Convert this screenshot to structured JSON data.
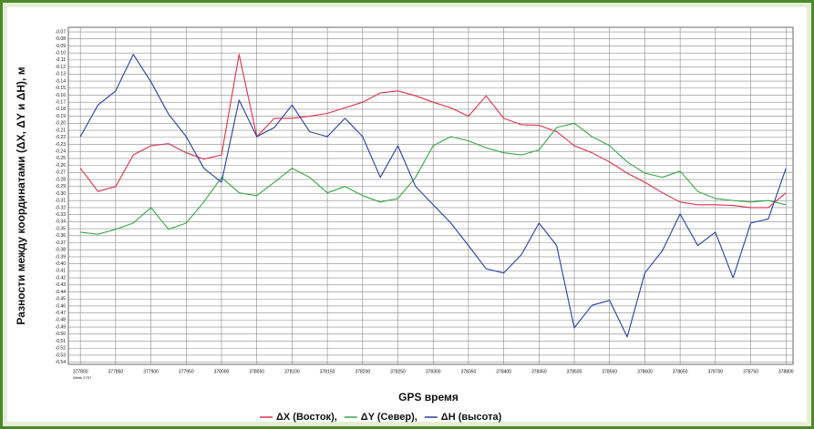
{
  "chart_data": {
    "type": "line",
    "y_label": "Разности между координатами (ΔX, ΔY и ΔH), м",
    "x_label": "GPS время",
    "annotation": "Week 2797",
    "x": [
      377800,
      377825,
      377850,
      377875,
      377900,
      377925,
      377950,
      377975,
      378000,
      378025,
      378050,
      378075,
      378100,
      378125,
      378150,
      378175,
      378200,
      378225,
      378250,
      378275,
      378300,
      378325,
      378350,
      378375,
      378400,
      378425,
      378450,
      378475,
      378500,
      378525,
      378550,
      378575,
      378600,
      378625,
      378650,
      378675,
      378700,
      378725,
      378750,
      378775,
      378800
    ],
    "series": [
      {
        "name": "ΔX (Восток),",
        "color": "#e0304a",
        "values": [
          -0.264,
          -0.297,
          -0.29,
          -0.245,
          -0.232,
          -0.229,
          -0.242,
          -0.251,
          -0.245,
          -0.102,
          -0.219,
          -0.193,
          -0.193,
          -0.19,
          -0.186,
          -0.178,
          -0.17,
          -0.157,
          -0.154,
          -0.161,
          -0.17,
          -0.178,
          -0.19,
          -0.161,
          -0.193,
          -0.202,
          -0.203,
          -0.212,
          -0.232,
          -0.242,
          -0.255,
          -0.271,
          -0.284,
          -0.299,
          -0.312,
          -0.316,
          -0.316,
          -0.317,
          -0.32,
          -0.32,
          -0.299
        ]
      },
      {
        "name": "ΔY (Север),",
        "color": "#3aa84a",
        "values": [
          -0.355,
          -0.358,
          -0.351,
          -0.342,
          -0.32,
          -0.351,
          -0.342,
          -0.312,
          -0.277,
          -0.299,
          -0.303,
          -0.284,
          -0.264,
          -0.277,
          -0.299,
          -0.29,
          -0.303,
          -0.312,
          -0.307,
          -0.277,
          -0.232,
          -0.219,
          -0.225,
          -0.235,
          -0.242,
          -0.245,
          -0.238,
          -0.206,
          -0.2,
          -0.219,
          -0.232,
          -0.255,
          -0.271,
          -0.277,
          -0.268,
          -0.297,
          -0.307,
          -0.31,
          -0.312,
          -0.31,
          -0.316
        ]
      },
      {
        "name": "ΔH (высота)",
        "color": "#2a40a0",
        "values": [
          -0.219,
          -0.174,
          -0.154,
          -0.102,
          -0.141,
          -0.187,
          -0.219,
          -0.264,
          -0.284,
          -0.167,
          -0.219,
          -0.206,
          -0.174,
          -0.212,
          -0.219,
          -0.193,
          -0.219,
          -0.277,
          -0.232,
          -0.29,
          -0.316,
          -0.342,
          -0.374,
          -0.407,
          -0.413,
          -0.387,
          -0.342,
          -0.374,
          -0.491,
          -0.459,
          -0.452,
          -0.504,
          -0.413,
          -0.381,
          -0.329,
          -0.374,
          -0.355,
          -0.42,
          -0.342,
          -0.336,
          -0.264
        ]
      }
    ],
    "xlim": [
      377783,
      378810
    ],
    "xticks": [
      377800,
      377850,
      377900,
      377950,
      378000,
      378050,
      378100,
      378150,
      378200,
      378250,
      378300,
      378350,
      378400,
      378450,
      378500,
      378550,
      378600,
      378650,
      378700,
      378750,
      378800
    ],
    "ylim": [
      -0.543,
      -0.0635
    ],
    "yticks": [
      -0.07,
      -0.08,
      -0.09,
      {
        "value": -0.1,
        "label": "-0.10"
      },
      -0.11,
      -0.12,
      -0.13,
      -0.14,
      -0.15,
      -0.16,
      -0.17,
      -0.18,
      -0.19,
      {
        "value": -0.2,
        "label": "-0.20"
      },
      -0.21,
      -0.22,
      -0.23,
      -0.24,
      -0.25,
      -0.26,
      -0.27,
      -0.28,
      -0.29,
      {
        "value": -0.3,
        "label": "-0.30"
      },
      -0.31,
      -0.32,
      -0.33,
      -0.34,
      -0.35,
      -0.36,
      -0.37,
      -0.38,
      -0.39,
      {
        "value": -0.4,
        "label": "-0.40"
      },
      -0.41,
      -0.42,
      -0.43,
      -0.44,
      -0.45,
      -0.46,
      -0.47,
      -0.48,
      -0.49,
      {
        "value": -0.5,
        "label": "-0.50"
      },
      -0.51,
      -0.52,
      -0.53,
      -0.54
    ],
    "grid": true
  }
}
